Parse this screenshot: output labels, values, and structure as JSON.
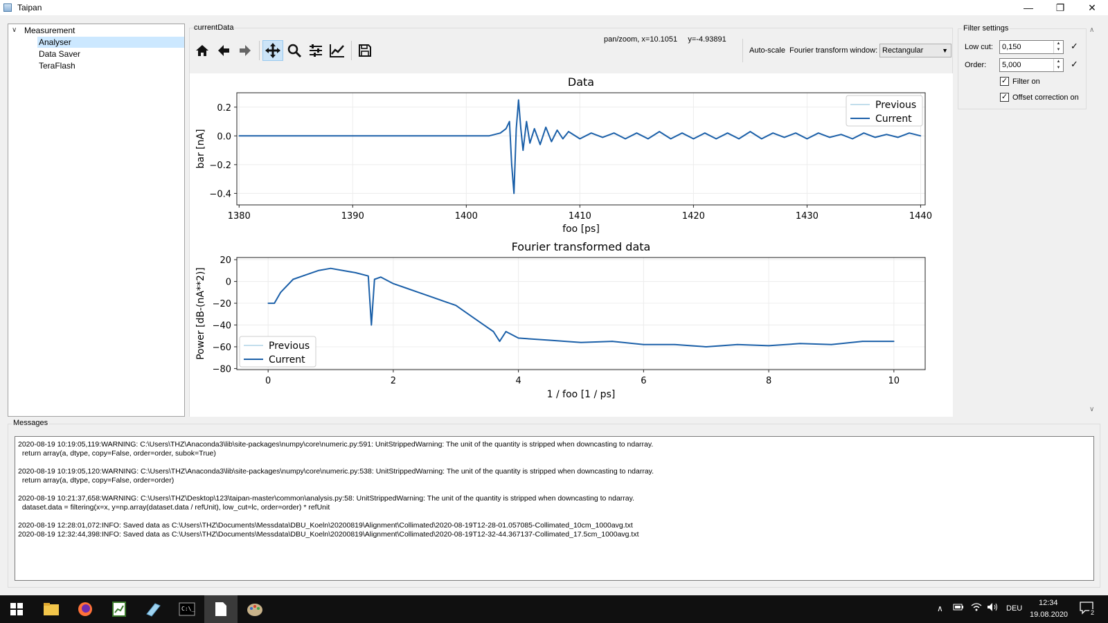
{
  "window": {
    "title": "Taipan",
    "minimize": "—",
    "restore": "❐",
    "close": "✕"
  },
  "tree": {
    "root": "Measurement",
    "items": [
      "Analyser",
      "Data Saver",
      "TeraFlash"
    ]
  },
  "center": {
    "group_label": "currentData",
    "coords": "pan/zoom, x=10.1051     y=-4.93891",
    "autoscale": "Auto-scale",
    "ft_window_label": "Fourier transform window:",
    "ft_window_value": "Rectangular"
  },
  "filter": {
    "title": "Filter settings",
    "low_cut_label": "Low cut:",
    "low_cut_value": "0,150",
    "order_label": "Order:",
    "order_value": "5,000",
    "filter_on": "Filter on",
    "offset_correction": "Offset correction on",
    "check": "✓"
  },
  "chart_data": [
    {
      "type": "line",
      "title": "Data",
      "xlabel": "foo [ps]",
      "ylabel": "bar [nA]",
      "xlim": [
        1379.8,
        1440.4
      ],
      "ylim": [
        -0.48,
        0.3
      ],
      "xticks": [
        1380,
        1390,
        1400,
        1410,
        1420,
        1430,
        1440
      ],
      "xtick_labels": [
        "1380",
        "1390",
        "1400",
        "1410",
        "1420",
        "1430",
        "1440"
      ],
      "yticks": [
        0.2,
        0.0,
        -0.2,
        -0.4
      ],
      "ytick_labels": [
        "0.2",
        "0.0",
        "−0.2",
        "−0.4"
      ],
      "legend": "top-right",
      "grid": true,
      "series": [
        {
          "name": "Previous",
          "color": "#9ecae1",
          "x": [],
          "y": []
        },
        {
          "name": "Current",
          "color": "#1a5fa8",
          "x": [
            1380,
            1385,
            1390,
            1395,
            1400,
            1402,
            1403,
            1403.5,
            1403.8,
            1404.0,
            1404.2,
            1404.4,
            1404.6,
            1404.8,
            1405.0,
            1405.3,
            1405.6,
            1406.0,
            1406.5,
            1407,
            1407.5,
            1408,
            1408.5,
            1409,
            1410,
            1411,
            1412,
            1413,
            1414,
            1415,
            1416,
            1417,
            1418,
            1419,
            1420,
            1421,
            1422,
            1423,
            1424,
            1425,
            1426,
            1427,
            1428,
            1429,
            1430,
            1431,
            1432,
            1433,
            1434,
            1435,
            1436,
            1437,
            1438,
            1439,
            1439.5,
            1440
          ],
          "y": [
            0.0,
            0.0,
            0.0,
            0.0,
            0.0,
            0.0,
            0.02,
            0.05,
            0.1,
            -0.2,
            -0.4,
            0.05,
            0.25,
            0.05,
            -0.1,
            0.1,
            -0.05,
            0.05,
            -0.06,
            0.06,
            -0.04,
            0.04,
            -0.02,
            0.03,
            -0.02,
            0.02,
            -0.01,
            0.02,
            -0.02,
            0.02,
            -0.02,
            0.03,
            -0.02,
            0.02,
            -0.02,
            0.02,
            -0.02,
            0.02,
            -0.02,
            0.03,
            -0.02,
            0.02,
            -0.01,
            0.02,
            -0.02,
            0.02,
            -0.01,
            0.01,
            -0.02,
            0.02,
            -0.01,
            0.01,
            -0.01,
            0.02,
            0.01,
            0.0
          ]
        }
      ]
    },
    {
      "type": "line",
      "title": "Fourier transformed data",
      "xlabel": "1 / foo [1 / ps]",
      "ylabel": "Power [dB-(nA**2)]",
      "xlim": [
        -0.5,
        10.5
      ],
      "ylim": [
        -81,
        22
      ],
      "xticks": [
        0,
        2,
        4,
        6,
        8,
        10
      ],
      "xtick_labels": [
        "0",
        "2",
        "4",
        "6",
        "8",
        "10"
      ],
      "yticks": [
        20,
        0,
        -20,
        -40,
        -60,
        -80
      ],
      "ytick_labels": [
        "20",
        "0",
        "−20",
        "−40",
        "−60",
        "−80"
      ],
      "legend": "bottom-left",
      "grid": true,
      "series": [
        {
          "name": "Previous",
          "color": "#9ecae1",
          "x": [],
          "y": []
        },
        {
          "name": "Current",
          "color": "#1a5fa8",
          "x": [
            0,
            0.1,
            0.2,
            0.4,
            0.6,
            0.8,
            1.0,
            1.2,
            1.4,
            1.6,
            1.65,
            1.7,
            1.8,
            2.0,
            2.2,
            2.4,
            2.6,
            2.8,
            3.0,
            3.2,
            3.4,
            3.6,
            3.7,
            3.8,
            4.0,
            4.5,
            5.0,
            5.5,
            6.0,
            6.5,
            7.0,
            7.5,
            8.0,
            8.5,
            9.0,
            9.5,
            10.0
          ],
          "y": [
            -20,
            -20,
            -10,
            2,
            6,
            10,
            12,
            10,
            8,
            5,
            -40,
            2,
            4,
            -2,
            -6,
            -10,
            -14,
            -18,
            -22,
            -30,
            -38,
            -46,
            -55,
            -46,
            -52,
            -54,
            -56,
            -55,
            -58,
            -58,
            -60,
            -58,
            -59,
            -57,
            -58,
            -55,
            -55
          ]
        }
      ]
    }
  ],
  "messages": {
    "title": "Messages",
    "lines": [
      "2020-08-19 10:19:05,119:WARNING: C:\\Users\\THZ\\Anaconda3\\lib\\site-packages\\numpy\\core\\numeric.py:591: UnitStrippedWarning: The unit of the quantity is stripped when downcasting to ndarray.",
      "  return array(a, dtype, copy=False, order=order, subok=True)",
      "",
      "2020-08-19 10:19:05,120:WARNING: C:\\Users\\THZ\\Anaconda3\\lib\\site-packages\\numpy\\core\\numeric.py:538: UnitStrippedWarning: The unit of the quantity is stripped when downcasting to ndarray.",
      "  return array(a, dtype, copy=False, order=order)",
      "",
      "2020-08-19 10:21:37,658:WARNING: C:\\Users\\THZ\\Desktop\\123\\taipan-master\\common\\analysis.py:58: UnitStrippedWarning: The unit of the quantity is stripped when downcasting to ndarray.",
      "  dataset.data = filtering(x=x, y=np.array(dataset.data / refUnit), low_cut=lc, order=order) * refUnit",
      "",
      "2020-08-19 12:28:01,072:INFO: Saved data as C:\\Users\\THZ\\Documents\\Messdata\\DBU_Koeln\\20200819\\Alignment\\Collimated\\2020-08-19T12-28-01.057085-Collimated_10cm_1000avg.txt",
      "2020-08-19 12:32:44,398:INFO: Saved data as C:\\Users\\THZ\\Documents\\Messdata\\DBU_Koeln\\20200819\\Alignment\\Collimated\\2020-08-19T12-32-44.367137-Collimated_17.5cm_1000avg.txt"
    ]
  },
  "taskbar": {
    "lang": "DEU",
    "time": "12:34",
    "date": "19.08.2020",
    "notifications": "2"
  }
}
